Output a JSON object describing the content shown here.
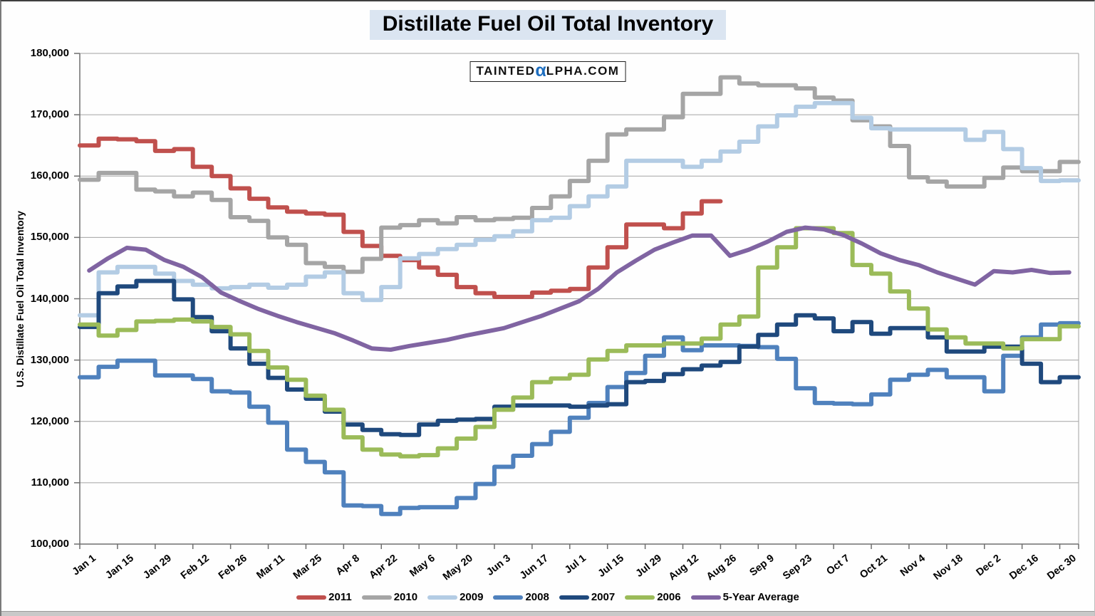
{
  "title": "Distillate Fuel Oil Total Inventory",
  "watermark": {
    "part1": "TAINTED",
    "alpha": "α",
    "part2": "LPHA.COM",
    "alpha_color": "#1F6FC0"
  },
  "chart_data": {
    "type": "line",
    "title": "Distillate Fuel Oil Total Inventory",
    "xlabel": "",
    "ylabel": "U.S. Distillate Fuel Oil Total Inventory",
    "ylim": [
      100000,
      180000
    ],
    "y_tick_step": 10000,
    "y_tick_labels": [
      "100,000",
      "110,000",
      "120,000",
      "130,000",
      "140,000",
      "150,000",
      "160,000",
      "170,000",
      "180,000"
    ],
    "x_tick_labels": [
      "Jan 1",
      "Jan 15",
      "Jan 29",
      "Feb 12",
      "Feb 26",
      "Mar 11",
      "Mar 25",
      "Apr 8",
      "Apr 22",
      "May 6",
      "May 20",
      "Jun 3",
      "Jun 17",
      "Jul 1",
      "Jul 15",
      "Jul 29",
      "Aug 12",
      "Aug 26",
      "Sep 9",
      "Sep 23",
      "Oct 7",
      "Oct 21",
      "Nov 4",
      "Nov 18",
      "Dec 2",
      "Dec 16",
      "Dec 30"
    ],
    "weeks_per_tick": 2,
    "x_total_weeks": 53,
    "grid": "horizontal",
    "gridline_color": "#A3A3A3",
    "legend_position": "bottom",
    "series": [
      {
        "name": "2011",
        "color": "#C0504D",
        "style": "step",
        "values": [
          165000,
          166100,
          166000,
          165700,
          164100,
          164400,
          161500,
          160000,
          158000,
          156300,
          154900,
          154200,
          153900,
          153700,
          150900,
          148600,
          147000,
          146300,
          145100,
          143900,
          141900,
          140900,
          140300,
          140300,
          141000,
          141300,
          141600,
          145100,
          148400,
          152100,
          152100,
          151500,
          153900,
          155900
        ]
      },
      {
        "name": "2010",
        "color": "#A5A5A5",
        "style": "step",
        "values": [
          159400,
          160500,
          160500,
          157800,
          157500,
          156700,
          157300,
          156100,
          153300,
          152700,
          150000,
          148800,
          145800,
          145200,
          144400,
          146500,
          151600,
          152000,
          152800,
          152300,
          153300,
          152800,
          153000,
          153200,
          154800,
          156700,
          159200,
          162500,
          166800,
          167600,
          167600,
          169600,
          173400,
          173400,
          176100,
          175100,
          174800,
          174800,
          174300,
          172800,
          172300,
          169100,
          168100,
          164900,
          159800,
          159100,
          158300,
          158300,
          159700,
          161400,
          160800,
          160800,
          162300
        ]
      },
      {
        "name": "2009",
        "color": "#B3CCE4",
        "style": "step",
        "values": [
          137300,
          144300,
          145200,
          145200,
          144100,
          142900,
          142300,
          141700,
          141900,
          142300,
          141800,
          142300,
          143600,
          144300,
          140900,
          139800,
          141900,
          146600,
          147300,
          148100,
          148800,
          149600,
          150200,
          151000,
          152800,
          153200,
          155100,
          156700,
          158300,
          162500,
          162500,
          162500,
          161500,
          162500,
          164000,
          165600,
          168100,
          169900,
          171300,
          171900,
          171900,
          169500,
          167800,
          167600,
          167600,
          167600,
          167600,
          165900,
          167200,
          164400,
          161300,
          159200,
          159300
        ]
      },
      {
        "name": "2008",
        "color": "#4F81BD",
        "style": "step",
        "values": [
          127200,
          128900,
          129900,
          129900,
          127500,
          127500,
          126900,
          124900,
          124700,
          122400,
          119800,
          115400,
          113400,
          111700,
          106300,
          106200,
          104900,
          105900,
          106000,
          106000,
          107500,
          109800,
          112600,
          114400,
          116300,
          118300,
          120600,
          123000,
          125600,
          127900,
          130700,
          133700,
          131600,
          132400,
          132400,
          132300,
          132100,
          130200,
          125400,
          123000,
          122900,
          122800,
          124400,
          126800,
          127600,
          128400,
          127200,
          127200,
          124900,
          130700,
          133700,
          135800,
          136000
        ]
      },
      {
        "name": "2007",
        "color": "#1F497D",
        "style": "step",
        "values": [
          135400,
          140900,
          142000,
          142900,
          142900,
          139900,
          137000,
          134700,
          131900,
          129400,
          127100,
          125200,
          123700,
          121600,
          119500,
          118600,
          117900,
          117800,
          119500,
          120100,
          120300,
          120400,
          122400,
          122600,
          122600,
          122600,
          122400,
          122600,
          122800,
          126400,
          126600,
          127700,
          128500,
          129100,
          129700,
          132200,
          134100,
          135800,
          137300,
          136800,
          134700,
          136200,
          134300,
          135200,
          135200,
          133700,
          131400,
          131400,
          132200,
          132200,
          129400,
          126400,
          127200
        ]
      },
      {
        "name": "2006",
        "color": "#9BBB59",
        "style": "step",
        "values": [
          135800,
          134000,
          134900,
          136300,
          136400,
          136600,
          136300,
          135400,
          134200,
          131500,
          128800,
          126800,
          124200,
          121900,
          117400,
          115400,
          114600,
          114300,
          114500,
          115600,
          117200,
          119100,
          121900,
          123900,
          126400,
          127000,
          127600,
          130100,
          131500,
          132400,
          132400,
          132700,
          132700,
          133500,
          135800,
          137100,
          145100,
          148400,
          151500,
          151500,
          150700,
          145500,
          144100,
          141200,
          138400,
          135000,
          133700,
          132700,
          132700,
          131900,
          133400,
          133400,
          135500
        ]
      },
      {
        "name": "5-Year Average",
        "color": "#8064A2",
        "style": "smooth",
        "values": [
          144600,
          146600,
          148300,
          148000,
          146300,
          145200,
          143500,
          141000,
          139600,
          138300,
          137200,
          136200,
          135300,
          134400,
          133200,
          131900,
          131700,
          132300,
          132800,
          133300,
          134000,
          134600,
          135200,
          136200,
          137200,
          138400,
          139600,
          141600,
          144300,
          146200,
          148000,
          149200,
          150300,
          150300,
          147000,
          148000,
          149300,
          150900,
          151600,
          151300,
          150400,
          149000,
          147400,
          146300,
          145500,
          144300,
          143300,
          142300,
          144500,
          144300,
          144700,
          144200,
          144300
        ]
      }
    ]
  }
}
